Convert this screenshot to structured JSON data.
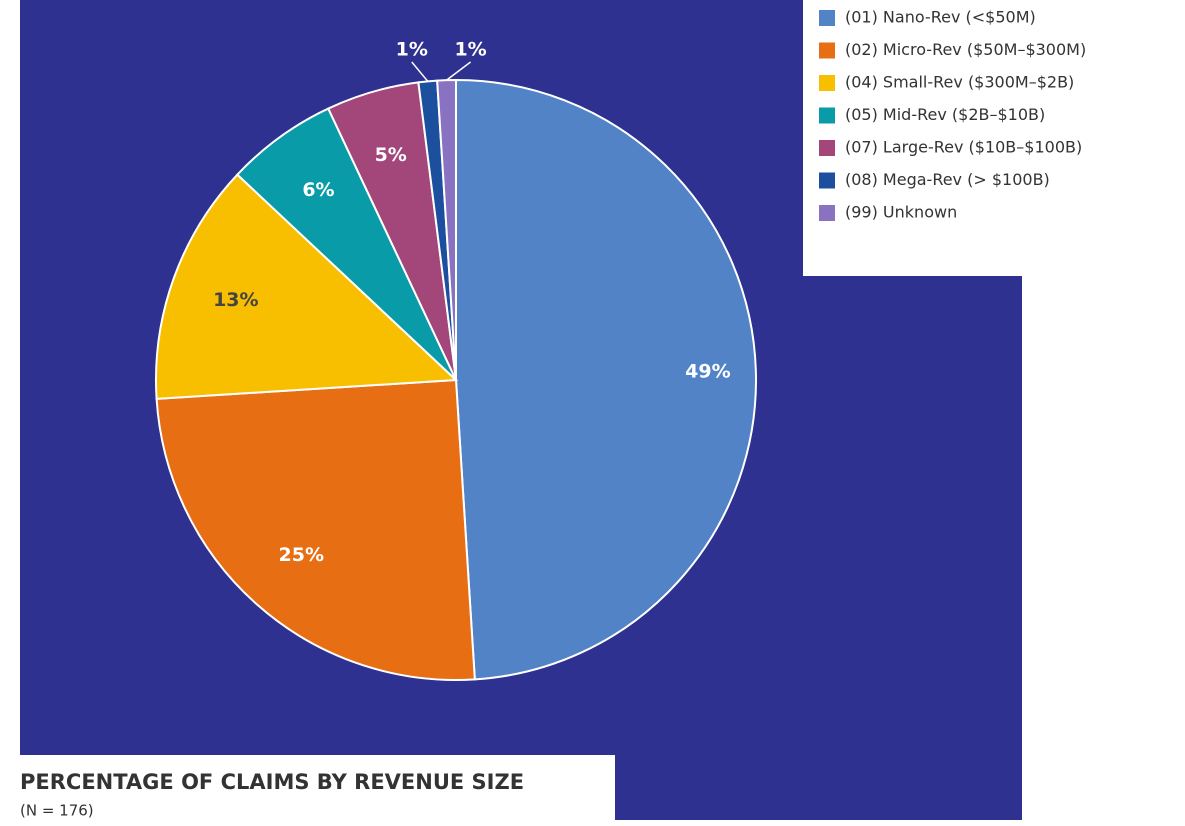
{
  "chart_data": {
    "type": "pie",
    "title": "PERCENTAGE OF CLAIMS BY REVENUE SIZE",
    "subtitle": "(N = 176)",
    "categories": [
      "(01) Nano-Rev (<$50M)",
      "(02) Micro-Rev ($50M–$300M)",
      "(04) Small-Rev ($300M–$2B)",
      "(05) Mid-Rev ($2B–$10B)",
      "(07) Large-Rev ($10B–$100B)",
      "(08) Mega-Rev (> $100B)",
      "(99) Unknown"
    ],
    "values": [
      49,
      25,
      13,
      6,
      5,
      1,
      1
    ],
    "value_labels": [
      "49%",
      "25%",
      "13%",
      "6%",
      "5%",
      "1%",
      "1%"
    ],
    "colors": [
      "#5283c6",
      "#e76e12",
      "#f8bf00",
      "#0a9ba8",
      "#a3467a",
      "#1d4f9f",
      "#8a72c2"
    ],
    "legend": "upper right"
  }
}
